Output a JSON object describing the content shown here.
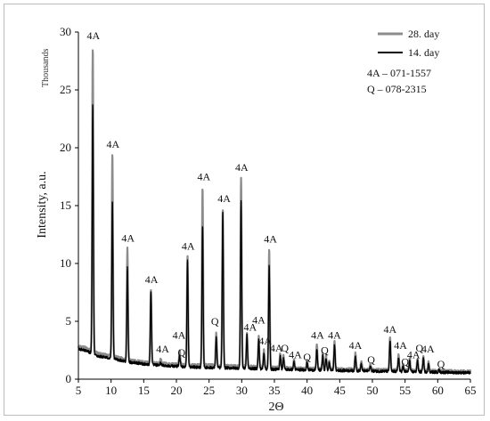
{
  "chart_data": {
    "type": "line",
    "xlabel": "2Θ",
    "ylabel": "Intensity, a.u.",
    "y_units_label": "Thousands",
    "xlim": [
      5,
      65
    ],
    "ylim": [
      0,
      30
    ],
    "xticks": [
      5,
      10,
      15,
      20,
      25,
      30,
      35,
      40,
      45,
      50,
      55,
      60,
      65
    ],
    "yticks": [
      0,
      5,
      10,
      15,
      20,
      25,
      30
    ],
    "legend_position": "top-right",
    "series": [
      {
        "name": "28. day",
        "color": "#8c8c8c",
        "baseline": [
          [
            5,
            2.8
          ],
          [
            6,
            2.7
          ],
          [
            8,
            2.2
          ],
          [
            10,
            2.0
          ],
          [
            13,
            1.6
          ],
          [
            16,
            1.4
          ],
          [
            19,
            1.3
          ],
          [
            22,
            1.2
          ],
          [
            25,
            1.2
          ],
          [
            30,
            1.1
          ],
          [
            35,
            1.0
          ],
          [
            40,
            0.9
          ],
          [
            45,
            0.85
          ],
          [
            50,
            0.8
          ],
          [
            55,
            0.75
          ],
          [
            60,
            0.7
          ],
          [
            65,
            0.65
          ]
        ],
        "peaks": [
          [
            7.2,
            28.7
          ],
          [
            10.2,
            19.4
          ],
          [
            12.5,
            11.3
          ],
          [
            16.1,
            7.7
          ],
          [
            17.6,
            1.7
          ],
          [
            20.5,
            2.5
          ],
          [
            21.7,
            10.6
          ],
          [
            24.0,
            16.6
          ],
          [
            26.1,
            4.0
          ],
          [
            27.1,
            14.7
          ],
          [
            29.9,
            17.5
          ],
          [
            30.8,
            4.0
          ],
          [
            32.6,
            3.7
          ],
          [
            33.4,
            2.5
          ],
          [
            34.2,
            11.2
          ],
          [
            35.9,
            2.2
          ],
          [
            36.4,
            2.0
          ],
          [
            38.0,
            1.7
          ],
          [
            40.0,
            1.6
          ],
          [
            41.5,
            3.0
          ],
          [
            42.4,
            2.2
          ],
          [
            42.9,
            2.0
          ],
          [
            43.4,
            1.6
          ],
          [
            44.2,
            3.3
          ],
          [
            47.4,
            2.2
          ],
          [
            48.3,
            1.5
          ],
          [
            49.7,
            1.3
          ],
          [
            52.7,
            3.6
          ],
          [
            54.0,
            2.1
          ],
          [
            54.7,
            1.3
          ],
          [
            55.7,
            1.8
          ],
          [
            56.9,
            1.8
          ],
          [
            57.8,
            2.0
          ],
          [
            58.6,
            1.5
          ],
          [
            60.2,
            0.9
          ]
        ]
      },
      {
        "name": "14. day",
        "color": "#000000",
        "baseline": [
          [
            5,
            2.6
          ],
          [
            6,
            2.5
          ],
          [
            8,
            2.0
          ],
          [
            10,
            1.8
          ],
          [
            13,
            1.45
          ],
          [
            16,
            1.25
          ],
          [
            19,
            1.15
          ],
          [
            22,
            1.05
          ],
          [
            25,
            1.0
          ],
          [
            30,
            0.95
          ],
          [
            35,
            0.85
          ],
          [
            40,
            0.8
          ],
          [
            45,
            0.75
          ],
          [
            50,
            0.7
          ],
          [
            55,
            0.65
          ],
          [
            60,
            0.6
          ],
          [
            65,
            0.55
          ]
        ],
        "peaks": [
          [
            7.2,
            23.8
          ],
          [
            10.2,
            15.5
          ],
          [
            12.5,
            9.6
          ],
          [
            16.1,
            7.6
          ],
          [
            17.6,
            1.4
          ],
          [
            20.5,
            2.0
          ],
          [
            21.7,
            10.3
          ],
          [
            24.0,
            13.3
          ],
          [
            26.1,
            3.6
          ],
          [
            27.1,
            14.4
          ],
          [
            29.9,
            15.3
          ],
          [
            30.8,
            3.8
          ],
          [
            32.6,
            3.4
          ],
          [
            33.4,
            2.3
          ],
          [
            34.2,
            9.9
          ],
          [
            35.9,
            2.0
          ],
          [
            36.4,
            1.8
          ],
          [
            38.0,
            1.5
          ],
          [
            40.0,
            1.4
          ],
          [
            41.5,
            2.6
          ],
          [
            42.4,
            2.0
          ],
          [
            42.9,
            1.8
          ],
          [
            43.4,
            1.4
          ],
          [
            44.2,
            3.0
          ],
          [
            47.4,
            2.0
          ],
          [
            48.3,
            1.3
          ],
          [
            49.7,
            1.1
          ],
          [
            52.7,
            3.3
          ],
          [
            54.0,
            1.9
          ],
          [
            54.7,
            1.1
          ],
          [
            55.7,
            1.6
          ],
          [
            56.9,
            1.6
          ],
          [
            57.8,
            1.8
          ],
          [
            58.6,
            1.3
          ],
          [
            60.2,
            0.8
          ]
        ]
      }
    ],
    "reference_text": [
      "4A – 071-1557",
      "Q – 078-2315"
    ],
    "annotations": [
      {
        "text": "4A",
        "x": 7.3,
        "y": 29.4
      },
      {
        "text": "4A",
        "x": 10.3,
        "y": 20.0
      },
      {
        "text": "4A",
        "x": 12.6,
        "y": 11.9
      },
      {
        "text": "4A",
        "x": 16.2,
        "y": 8.3
      },
      {
        "text": "4A",
        "x": 17.9,
        "y": 2.3
      },
      {
        "text": "4A",
        "x": 20.4,
        "y": 3.5
      },
      {
        "text": "Q",
        "x": 20.8,
        "y": 2.0
      },
      {
        "text": "4A",
        "x": 21.8,
        "y": 11.2
      },
      {
        "text": "4A",
        "x": 24.2,
        "y": 17.2
      },
      {
        "text": "Q",
        "x": 25.9,
        "y": 4.7
      },
      {
        "text": "4A",
        "x": 27.3,
        "y": 15.3
      },
      {
        "text": "4A",
        "x": 30.0,
        "y": 18.0
      },
      {
        "text": "4A",
        "x": 32.6,
        "y": 4.8
      },
      {
        "text": "4A",
        "x": 31.3,
        "y": 4.2
      },
      {
        "text": "4A",
        "x": 33.6,
        "y": 3.0
      },
      {
        "text": "4A",
        "x": 34.4,
        "y": 11.8
      },
      {
        "text": "4A",
        "x": 35.3,
        "y": 2.4
      },
      {
        "text": "Q",
        "x": 36.6,
        "y": 2.4
      },
      {
        "text": "4A",
        "x": 38.2,
        "y": 1.8
      },
      {
        "text": "Q",
        "x": 40.0,
        "y": 1.6
      },
      {
        "text": "4A",
        "x": 41.6,
        "y": 3.5
      },
      {
        "text": "Q",
        "x": 42.7,
        "y": 2.2
      },
      {
        "text": "4A",
        "x": 44.2,
        "y": 3.5
      },
      {
        "text": "4A",
        "x": 47.4,
        "y": 2.6
      },
      {
        "text": "Q",
        "x": 49.8,
        "y": 1.4
      },
      {
        "text": "4A",
        "x": 52.7,
        "y": 4.0
      },
      {
        "text": "4A",
        "x": 54.3,
        "y": 2.6
      },
      {
        "text": "Q",
        "x": 55.0,
        "y": 1.2
      },
      {
        "text": "4A",
        "x": 56.3,
        "y": 1.8
      },
      {
        "text": "Q",
        "x": 57.2,
        "y": 2.4
      },
      {
        "text": "4A",
        "x": 58.5,
        "y": 2.3
      },
      {
        "text": "Q",
        "x": 60.5,
        "y": 1.0
      }
    ]
  }
}
